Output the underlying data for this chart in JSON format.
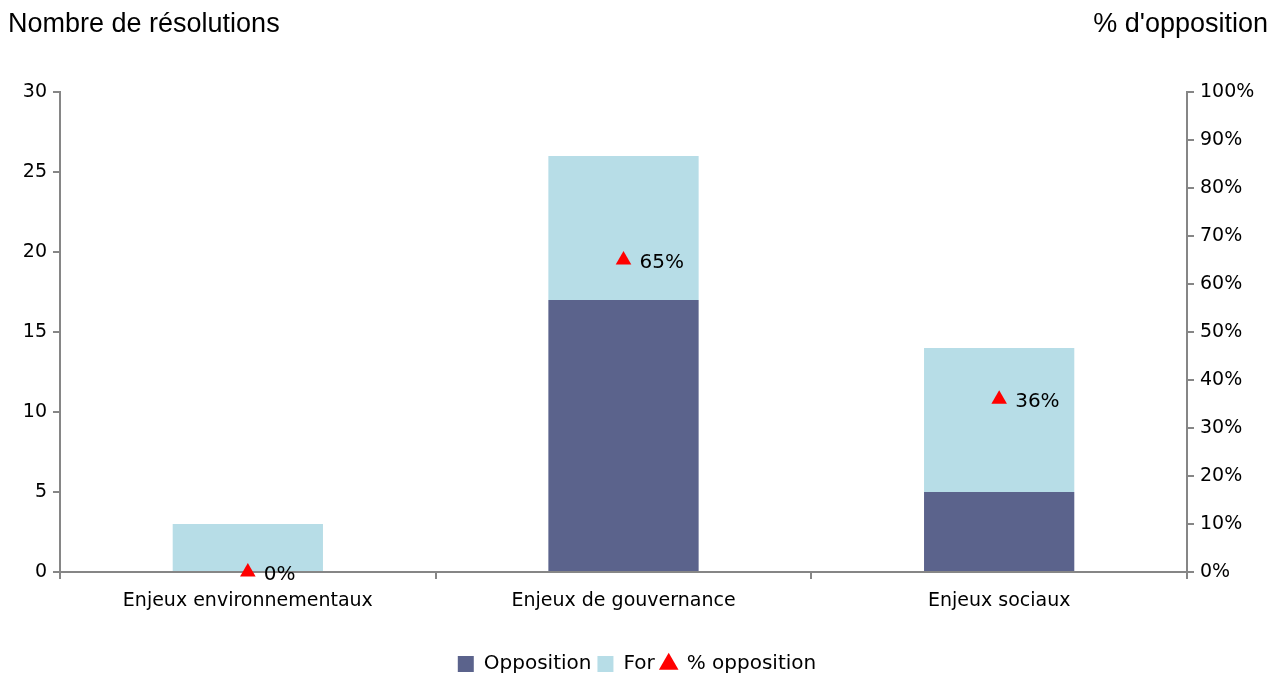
{
  "chart_data": {
    "type": "bar",
    "stacked": true,
    "ylabel": "Nombre de résolutions",
    "y2label": "% d'opposition",
    "categories": [
      "Enjeux environnementaux",
      "Enjeux de gouvernance",
      "Enjeux sociaux"
    ],
    "series": [
      {
        "name": "Opposition",
        "color": "#5b638c",
        "values": [
          0,
          17,
          5
        ]
      },
      {
        "name": "For",
        "color": "#b7dde7",
        "values": [
          3,
          9,
          9
        ]
      },
      {
        "name": "% opposition",
        "type": "scatter",
        "axis": "y2",
        "color": "#ff0000",
        "values": [
          0,
          65,
          36
        ],
        "value_labels": [
          "0%",
          "65%",
          "36%"
        ]
      }
    ],
    "ylim": [
      0,
      30
    ],
    "yticks": [
      0,
      5,
      10,
      15,
      20,
      25,
      30
    ],
    "y2lim": [
      0,
      100
    ],
    "y2ticks": [
      {
        "value": 0,
        "label": "0%"
      },
      {
        "value": 10,
        "label": "10%"
      },
      {
        "value": 20,
        "label": "20%"
      },
      {
        "value": 30,
        "label": "30%"
      },
      {
        "value": 40,
        "label": "40%"
      },
      {
        "value": 50,
        "label": "50%"
      },
      {
        "value": 60,
        "label": "60%"
      },
      {
        "value": 70,
        "label": "70%"
      },
      {
        "value": 80,
        "label": "80%"
      },
      {
        "value": 90,
        "label": "90%"
      },
      {
        "value": 100,
        "label": "100%"
      }
    ],
    "marker": "triangle",
    "legend": "bottom"
  }
}
